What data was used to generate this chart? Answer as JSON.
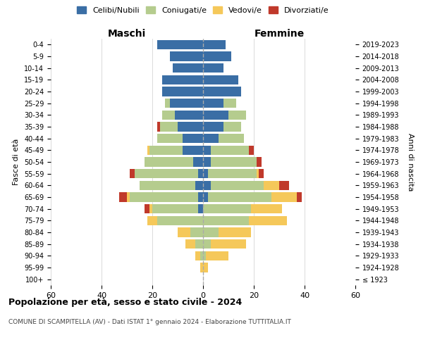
{
  "age_groups": [
    "100+",
    "95-99",
    "90-94",
    "85-89",
    "80-84",
    "75-79",
    "70-74",
    "65-69",
    "60-64",
    "55-59",
    "50-54",
    "45-49",
    "40-44",
    "35-39",
    "30-34",
    "25-29",
    "20-24",
    "15-19",
    "10-14",
    "5-9",
    "0-4"
  ],
  "birth_years": [
    "≤ 1923",
    "1924-1928",
    "1929-1933",
    "1934-1938",
    "1939-1943",
    "1944-1948",
    "1949-1953",
    "1954-1958",
    "1959-1963",
    "1964-1968",
    "1969-1973",
    "1974-1978",
    "1979-1983",
    "1984-1988",
    "1989-1993",
    "1994-1998",
    "1999-2003",
    "2004-2008",
    "2009-2013",
    "2014-2018",
    "2019-2023"
  ],
  "colors": {
    "celibi": "#3a6ea5",
    "coniugati": "#b5cc8e",
    "vedovi": "#f5c85a",
    "divorziati": "#c0392b"
  },
  "maschi": {
    "celibi": [
      0,
      0,
      0,
      0,
      0,
      0,
      2,
      2,
      3,
      2,
      4,
      8,
      8,
      10,
      11,
      13,
      16,
      16,
      12,
      13,
      18
    ],
    "coniugati": [
      0,
      0,
      1,
      3,
      5,
      18,
      18,
      27,
      22,
      25,
      19,
      13,
      10,
      7,
      5,
      2,
      0,
      0,
      0,
      0,
      0
    ],
    "vedovi": [
      0,
      1,
      2,
      4,
      5,
      4,
      1,
      1,
      0,
      0,
      0,
      1,
      0,
      0,
      0,
      0,
      0,
      0,
      0,
      0,
      0
    ],
    "divorziati": [
      0,
      0,
      0,
      0,
      0,
      0,
      2,
      3,
      0,
      2,
      0,
      0,
      0,
      1,
      0,
      0,
      0,
      0,
      0,
      0,
      0
    ]
  },
  "femmine": {
    "nubili": [
      0,
      0,
      0,
      0,
      0,
      0,
      0,
      2,
      3,
      2,
      3,
      3,
      6,
      8,
      10,
      8,
      15,
      14,
      8,
      11,
      9
    ],
    "coniugate": [
      0,
      0,
      1,
      3,
      6,
      18,
      19,
      25,
      21,
      19,
      18,
      15,
      10,
      7,
      7,
      5,
      0,
      0,
      0,
      0,
      0
    ],
    "vedove": [
      0,
      2,
      9,
      14,
      13,
      15,
      12,
      10,
      6,
      1,
      0,
      0,
      0,
      0,
      0,
      0,
      0,
      0,
      0,
      0,
      0
    ],
    "divorziate": [
      0,
      0,
      0,
      0,
      0,
      0,
      0,
      2,
      4,
      2,
      2,
      2,
      0,
      0,
      0,
      0,
      0,
      0,
      0,
      0,
      0
    ]
  },
  "xlim": 60,
  "title": "Popolazione per età, sesso e stato civile - 2024",
  "subtitle": "COMUNE DI SCAMPITELLA (AV) - Dati ISTAT 1° gennaio 2024 - Elaborazione TUTTITALIA.IT",
  "ylabel": "Fasce di età",
  "ylabel_right": "Anni di nascita",
  "maschi_label": "Maschi",
  "femmine_label": "Femmine",
  "legend_labels": [
    "Celibi/Nubili",
    "Coniugati/e",
    "Vedovi/e",
    "Divorziati/e"
  ],
  "background_color": "#ffffff",
  "grid_color": "#cccccc"
}
